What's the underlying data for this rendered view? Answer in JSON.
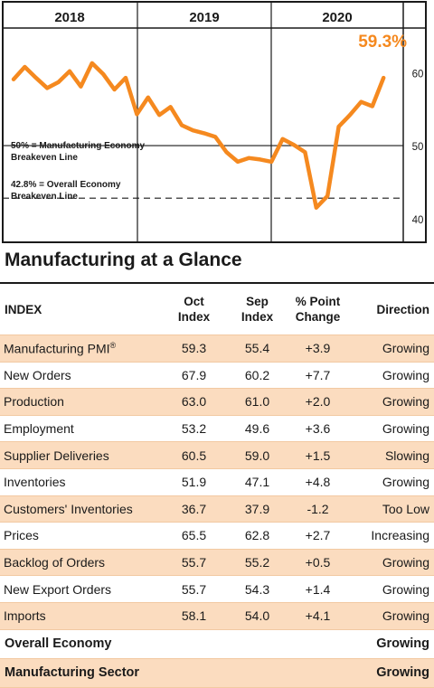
{
  "chart_data": {
    "type": "line",
    "title": "",
    "years": [
      "2018",
      "2019",
      "2020"
    ],
    "y_ticks": [
      40,
      50,
      60
    ],
    "ylim": [
      37,
      66
    ],
    "highlight_label": "59.3%",
    "reference_lines": [
      {
        "value": 50,
        "style": "solid",
        "label_line1": "50% = Manufacturing Economy",
        "label_line2": "Breakeven Line"
      },
      {
        "value": 42.8,
        "style": "dashed",
        "label_line1": "42.8% = Overall Economy",
        "label_line2": "Breakeven Line"
      }
    ],
    "x": [
      "2018-01",
      "2018-02",
      "2018-03",
      "2018-04",
      "2018-05",
      "2018-06",
      "2018-07",
      "2018-08",
      "2018-09",
      "2018-10",
      "2018-11",
      "2018-12",
      "2019-01",
      "2019-02",
      "2019-03",
      "2019-04",
      "2019-05",
      "2019-06",
      "2019-07",
      "2019-08",
      "2019-09",
      "2019-10",
      "2019-11",
      "2019-12",
      "2020-01",
      "2020-02",
      "2020-03",
      "2020-04",
      "2020-05",
      "2020-06",
      "2020-07",
      "2020-08",
      "2020-09",
      "2020-10"
    ],
    "series": [
      {
        "values": [
          59.1,
          60.8,
          59.3,
          57.9,
          58.7,
          60.2,
          58.1,
          61.3,
          59.8,
          57.7,
          59.3,
          54.3,
          56.6,
          54.2,
          55.3,
          52.8,
          52.1,
          51.7,
          51.2,
          49.1,
          47.8,
          48.3,
          48.1,
          47.8,
          50.9,
          50.1,
          49.1,
          41.5,
          43.1,
          52.6,
          54.2,
          56.0,
          55.4,
          59.3
        ],
        "color": "#f5891f"
      }
    ]
  },
  "table": {
    "title": "Manufacturing at a Glance",
    "headers": {
      "index": "INDEX",
      "oct_1": "Oct",
      "oct_2": "Index",
      "sep_1": "Sep",
      "sep_2": "Index",
      "chg_1": "% Point",
      "chg_2": "Change",
      "direction": "Direction"
    },
    "rows": [
      {
        "name": "Manufacturing PMI",
        "sup": "®",
        "oct": "59.3",
        "sep": "55.4",
        "chg": "+3.9",
        "dir": "Growing"
      },
      {
        "name": "New Orders",
        "oct": "67.9",
        "sep": "60.2",
        "chg": "+7.7",
        "dir": "Growing"
      },
      {
        "name": "Production",
        "oct": "63.0",
        "sep": "61.0",
        "chg": "+2.0",
        "dir": "Growing"
      },
      {
        "name": "Employment",
        "oct": "53.2",
        "sep": "49.6",
        "chg": "+3.6",
        "dir": "Growing"
      },
      {
        "name": "Supplier Deliveries",
        "oct": "60.5",
        "sep": "59.0",
        "chg": "+1.5",
        "dir": "Slowing"
      },
      {
        "name": "Inventories",
        "oct": "51.9",
        "sep": "47.1",
        "chg": "+4.8",
        "dir": "Growing"
      },
      {
        "name": "Customers' Inventories",
        "oct": "36.7",
        "sep": "37.9",
        "chg": "-1.2",
        "dir": "Too Low"
      },
      {
        "name": "Prices",
        "oct": "65.5",
        "sep": "62.8",
        "chg": "+2.7",
        "dir": "Increasing"
      },
      {
        "name": "Backlog of Orders",
        "oct": "55.7",
        "sep": "55.2",
        "chg": "+0.5",
        "dir": "Growing"
      },
      {
        "name": "New Export Orders",
        "oct": "55.7",
        "sep": "54.3",
        "chg": "+1.4",
        "dir": "Growing"
      },
      {
        "name": "Imports",
        "oct": "58.1",
        "sep": "54.0",
        "chg": "+4.1",
        "dir": "Growing"
      }
    ],
    "summary": [
      {
        "name": "Overall Economy",
        "dir": "Growing"
      },
      {
        "name": "Manufacturing Sector",
        "dir": "Growing"
      }
    ],
    "shade_color": "#fbdcbf"
  }
}
